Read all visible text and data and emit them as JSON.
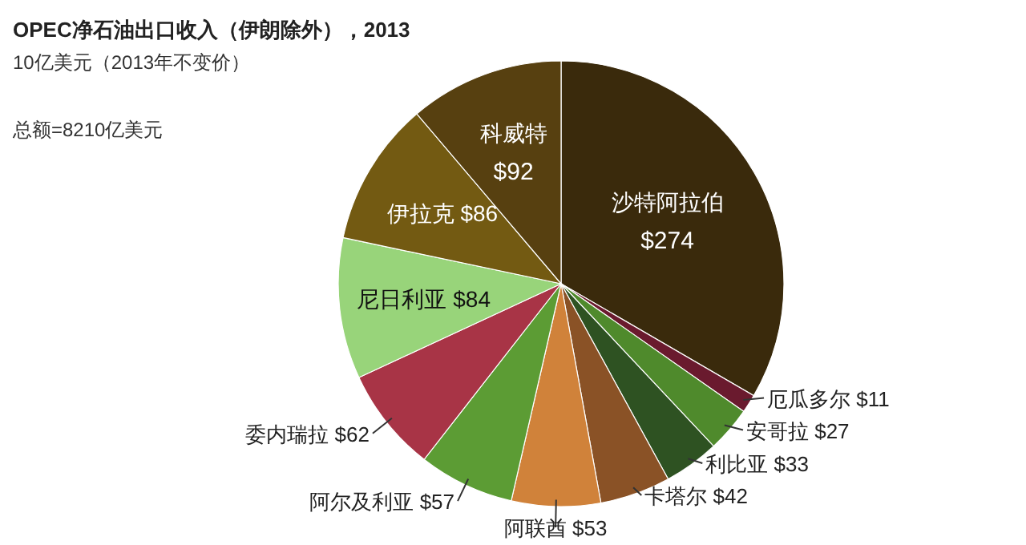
{
  "chart_data": {
    "type": "pie",
    "title": "OPEC净石油出口收入（伊朗除外），2013",
    "subtitle": "10亿美元（2013年不变价）",
    "annotations": [
      "总额=8210亿美元"
    ],
    "categories": [
      "沙特阿拉伯",
      "厄瓜多尔",
      "安哥拉",
      "利比亚",
      "卡塔尔",
      "阿联酋",
      "阿尔及利亚",
      "委内瑞拉",
      "尼日利亚",
      "伊拉克",
      "科威特"
    ],
    "values": [
      274,
      11,
      27,
      33,
      42,
      53,
      57,
      62,
      84,
      86,
      92
    ],
    "value_labels": [
      "$274",
      "$11",
      "$27",
      "$33",
      "$42",
      "$53",
      "$57",
      "$62",
      "$84",
      "$86",
      "$92"
    ],
    "colors": [
      "#3a2a0c",
      "#6a1a2e",
      "#4f8a2c",
      "#2e5222",
      "#8a5226",
      "#d0823a",
      "#5c9c34",
      "#a83446",
      "#98d47a",
      "#735a12",
      "#574010"
    ]
  }
}
